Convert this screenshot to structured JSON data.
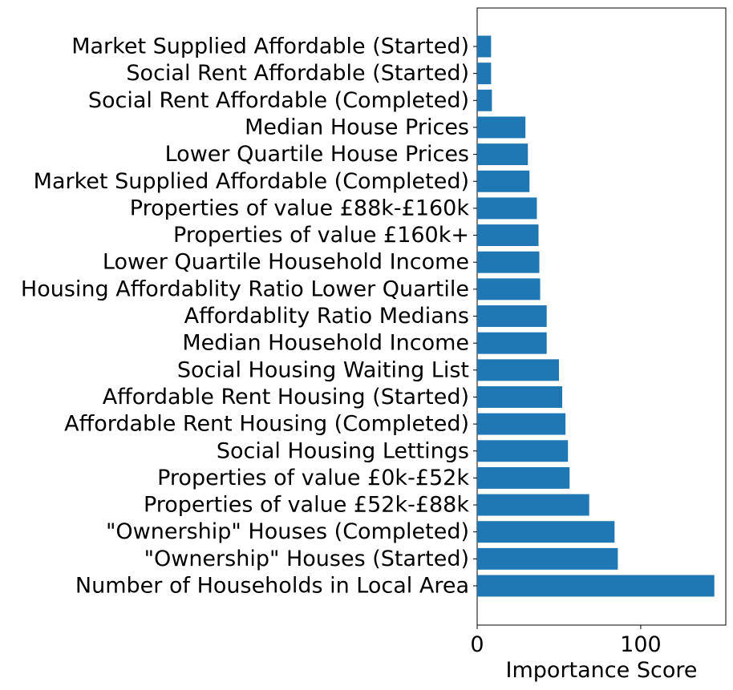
{
  "chart_data": {
    "type": "bar",
    "orientation": "horizontal",
    "categories": [
      "Market Supplied Affordable (Started)",
      "Social Rent Affordable (Started)",
      "Social Rent Affordable (Completed)",
      "Median House Prices",
      "Lower Quartile House Prices",
      "Market Supplied Affordable (Completed)",
      "Properties of value £88k-£160k",
      "Properties of value £160k+",
      "Lower Quartile Household Income",
      "Housing Affordablity Ratio Lower Quartile",
      "Affordablity Ratio Medians",
      "Median Household Income",
      "Social Housing Waiting List",
      "Affordable Rent Housing (Started)",
      "Affordable Rent Housing (Completed)",
      "Social Housing Lettings",
      "Properties of value £0k-£52k",
      "Properties of value £52k-£88k",
      "\"Ownership\" Houses (Completed)",
      "\"Ownership\" Houses (Started)",
      "Number of Households in Local Area"
    ],
    "values": [
      8.5,
      8.5,
      9,
      29.5,
      31,
      32,
      36.5,
      37.5,
      38,
      38.5,
      42.5,
      42.5,
      50,
      52,
      54,
      55.5,
      56.5,
      68.5,
      84,
      86,
      145
    ],
    "xlabel": "Importance Score",
    "ylabel": "",
    "title": "",
    "xlim": [
      0,
      152
    ],
    "xticks": [
      0,
      100
    ],
    "bar_color": "#1f77b4",
    "grid": false
  }
}
